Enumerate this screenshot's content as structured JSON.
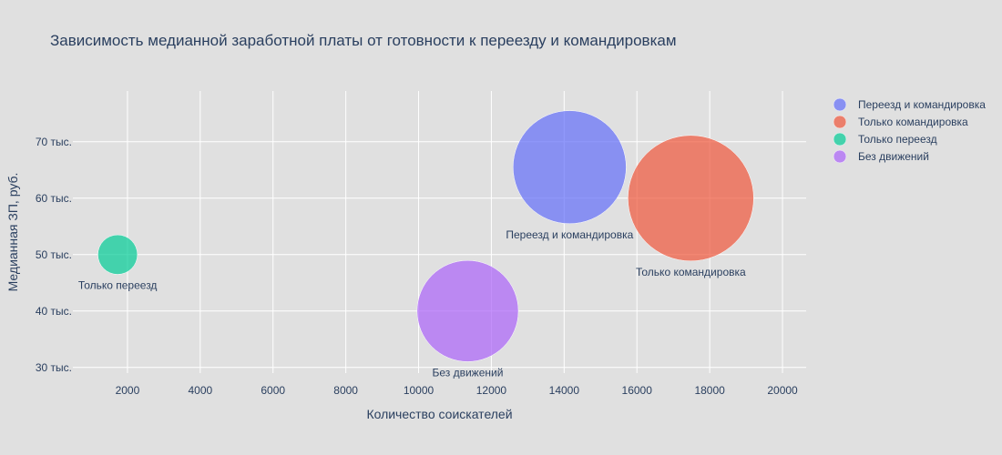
{
  "chart_data": {
    "type": "scatter",
    "title": "Зависимость медианной заработной платы от готовности к переезду и командировкам",
    "xlabel": "Количество соискателей",
    "ylabel": "Медианная ЗП, руб.",
    "xlim": [
      500,
      20650
    ],
    "ylim": [
      29000,
      79000
    ],
    "x_ticks": [
      2000,
      4000,
      6000,
      8000,
      10000,
      12000,
      14000,
      16000,
      18000,
      20000
    ],
    "x_tick_labels": [
      "2000",
      "4000",
      "6000",
      "8000",
      "10000",
      "12000",
      "14000",
      "16000",
      "18000",
      "20000"
    ],
    "y_ticks": [
      30000,
      40000,
      50000,
      60000,
      70000
    ],
    "y_tick_labels": [
      "30 тыс.",
      "40 тыс.",
      "50 тыс.",
      "60 тыс.",
      "70 тыс."
    ],
    "grid": true,
    "legend_position": "top-right",
    "series": [
      {
        "name": "Переезд и командировка",
        "x": 14150,
        "y": 65500,
        "size": 14150,
        "color": "#636efa",
        "label": "Переезд и командировка"
      },
      {
        "name": "Только командировка",
        "x": 17480,
        "y": 60000,
        "size": 17480,
        "color": "#ef553b",
        "label": "Только командировка"
      },
      {
        "name": "Только переезд",
        "x": 1730,
        "y": 50000,
        "size": 1730,
        "color": "#00cc96",
        "label": "Только переезд"
      },
      {
        "name": "Без движений",
        "x": 11350,
        "y": 40000,
        "size": 11350,
        "color": "#ab63fa",
        "label": "Без движений"
      }
    ]
  }
}
